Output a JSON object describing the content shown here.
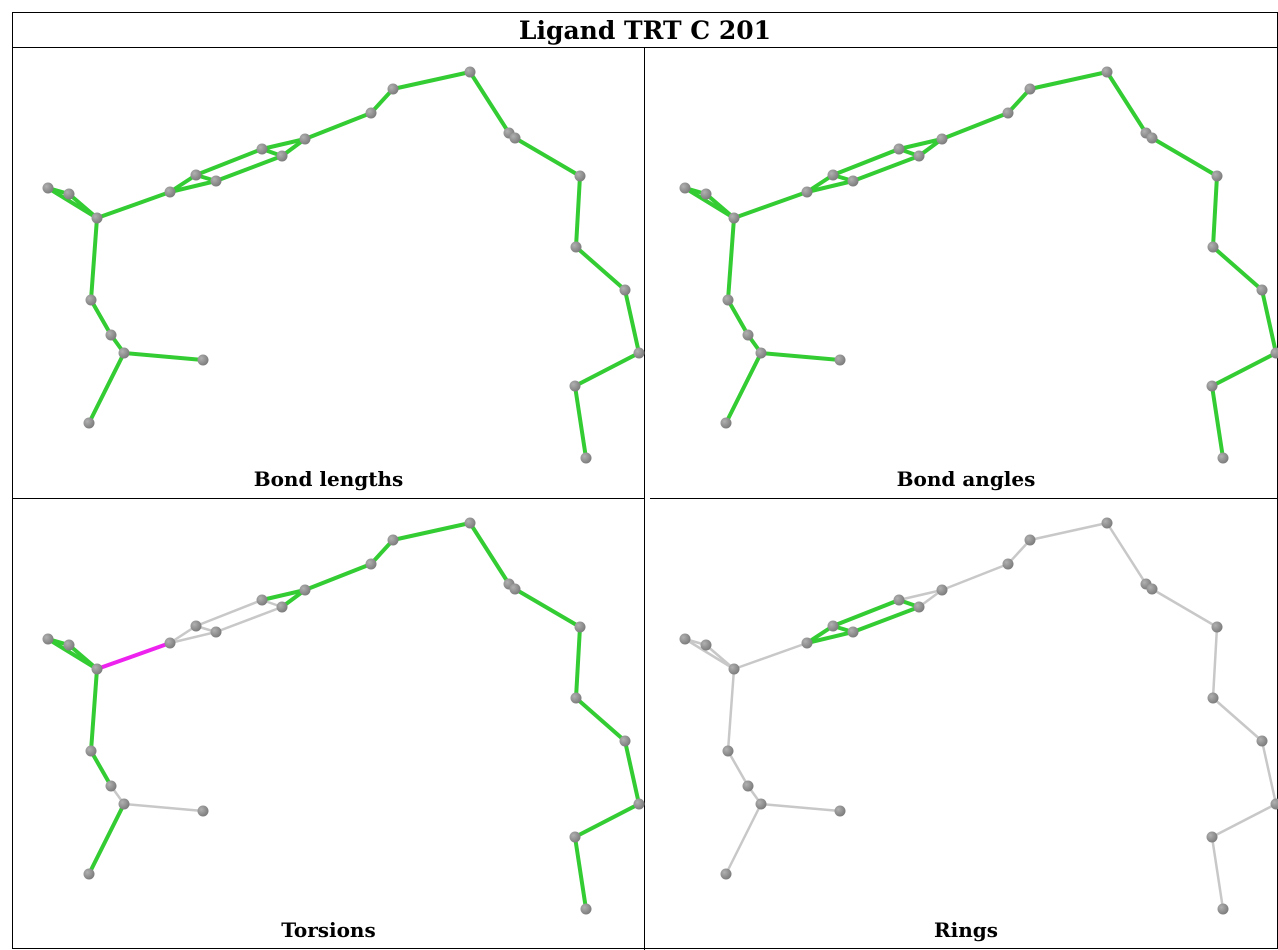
{
  "title": "Ligand TRT C 201",
  "colors": {
    "ok": "#33cc33",
    "outlier": "#ee22ee",
    "unvalidated": "#c8c8c8",
    "atom": "#7a7a7a",
    "atom_highlight": "#b0b0b0"
  },
  "panels": [
    {
      "key": "bond_lengths",
      "caption": "Bond lengths",
      "bond_states": [
        "ok",
        "ok",
        "ok",
        "ok",
        "ok",
        "ok",
        "ok",
        "ok",
        "ok",
        "ok",
        "ok",
        "ok",
        "ok",
        "ok",
        "ok",
        "ok",
        "ok",
        "ok",
        "ok",
        "ok",
        "ok",
        "ok",
        "ok",
        "ok",
        "ok",
        "ok",
        "ok",
        "ok"
      ]
    },
    {
      "key": "bond_angles",
      "caption": "Bond angles",
      "bond_states": [
        "ok",
        "ok",
        "ok",
        "ok",
        "ok",
        "ok",
        "ok",
        "ok",
        "ok",
        "ok",
        "ok",
        "ok",
        "ok",
        "ok",
        "ok",
        "ok",
        "ok",
        "ok",
        "ok",
        "ok",
        "ok",
        "ok",
        "ok",
        "ok",
        "ok",
        "ok",
        "ok",
        "ok"
      ]
    },
    {
      "key": "torsions",
      "caption": "Torsions",
      "bond_states": [
        "ok",
        "ok",
        "ok",
        "ok",
        "ok",
        "ok",
        "ok",
        "ok",
        "ok",
        "ok",
        "ok",
        "ok",
        "ok",
        "none",
        "none",
        "none",
        "none",
        "none",
        "none",
        "outlier",
        "ok",
        "ok",
        "ok",
        "ok",
        "none",
        "none",
        "ok",
        "ok"
      ]
    },
    {
      "key": "rings",
      "caption": "Rings",
      "bond_states": [
        "none",
        "none",
        "none",
        "none",
        "none",
        "none",
        "none",
        "none",
        "none",
        "none",
        "none",
        "none",
        "none",
        "ok",
        "ok",
        "ok",
        "ok",
        "ok",
        "ok",
        "none",
        "none",
        "none",
        "none",
        "none",
        "none",
        "none",
        "none",
        "none"
      ]
    }
  ]
}
